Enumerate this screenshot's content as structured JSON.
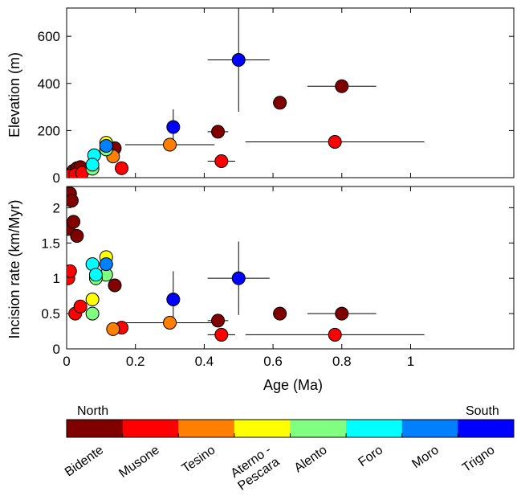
{
  "chart_data": [
    {
      "type": "scatter",
      "panel": "top",
      "xlabel": "",
      "ylabel": "Elevation (m)",
      "xlim": [
        0,
        1.3
      ],
      "ylim": [
        0,
        720
      ],
      "x_ticks": [
        "0",
        "0.2",
        "0.4",
        "0.6",
        "0.8",
        "1"
      ],
      "y_ticks": [
        "0",
        "200",
        "400",
        "600"
      ],
      "points": [
        {
          "river": "Bidente",
          "x": 0.005,
          "y": 5
        },
        {
          "river": "Bidente",
          "x": 0.012,
          "y": 15
        },
        {
          "river": "Bidente",
          "x": 0.02,
          "y": 30
        },
        {
          "river": "Bidente",
          "x": 0.03,
          "y": 40
        },
        {
          "river": "Bidente",
          "x": 0.04,
          "y": 45
        },
        {
          "river": "Bidente",
          "x": 0.14,
          "y": 125
        },
        {
          "river": "Bidente",
          "x": 0.44,
          "y": 195,
          "xerr": 0.03
        },
        {
          "river": "Bidente",
          "x": 0.62,
          "y": 318,
          "xerr": 0.02
        },
        {
          "river": "Bidente",
          "x": 0.8,
          "y": 388,
          "xerr": 0.1
        },
        {
          "river": "Musone",
          "x": 0.003,
          "y": 3
        },
        {
          "river": "Musone",
          "x": 0.01,
          "y": 8
        },
        {
          "river": "Musone",
          "x": 0.025,
          "y": 12
        },
        {
          "river": "Musone",
          "x": 0.045,
          "y": 20
        },
        {
          "river": "Musone",
          "x": 0.16,
          "y": 40
        },
        {
          "river": "Musone",
          "x": 0.45,
          "y": 70,
          "xerr": 0.04
        },
        {
          "river": "Musone",
          "x": 0.78,
          "y": 152,
          "xerr": 0.26
        },
        {
          "river": "Tesino",
          "x": 0.135,
          "y": 90
        },
        {
          "river": "Tesino",
          "x": 0.3,
          "y": 140,
          "xerr": 0.13
        },
        {
          "river": "Aterno - Pescara",
          "x": 0.115,
          "y": 148
        },
        {
          "river": "Alento",
          "x": 0.075,
          "y": 38
        },
        {
          "river": "Alento",
          "x": 0.115,
          "y": 120
        },
        {
          "river": "Foro",
          "x": 0.08,
          "y": 95
        },
        {
          "river": "Foro",
          "x": 0.075,
          "y": 55
        },
        {
          "river": "Moro",
          "x": 0.115,
          "y": 135
        },
        {
          "river": "Trigno",
          "x": 0.31,
          "y": 215,
          "yerr": 75
        },
        {
          "river": "Trigno",
          "x": 0.5,
          "y": 500,
          "xerr": 0.09,
          "yerr": 220
        }
      ]
    },
    {
      "type": "scatter",
      "panel": "bottom",
      "xlabel": "Age (Ma)",
      "ylabel": "Incision rate (km/Myr)",
      "xlim": [
        0,
        1.3
      ],
      "ylim": [
        0,
        2.3
      ],
      "x_ticks": [
        "0",
        "0.2",
        "0.4",
        "0.6",
        "0.8",
        "1"
      ],
      "y_ticks": [
        "0",
        "0.5",
        "1",
        "1.5",
        "2"
      ],
      "points": [
        {
          "river": "Bidente",
          "x": 0.01,
          "y": 2.2
        },
        {
          "river": "Bidente",
          "x": 0.015,
          "y": 2.1
        },
        {
          "river": "Bidente",
          "x": 0.005,
          "y": 1.7
        },
        {
          "river": "Bidente",
          "x": 0.02,
          "y": 1.8
        },
        {
          "river": "Bidente",
          "x": 0.03,
          "y": 1.6
        },
        {
          "river": "Bidente",
          "x": 0.14,
          "y": 0.9
        },
        {
          "river": "Bidente",
          "x": 0.44,
          "y": 0.4,
          "xerr": 0.03
        },
        {
          "river": "Bidente",
          "x": 0.62,
          "y": 0.5,
          "xerr": 0.02
        },
        {
          "river": "Bidente",
          "x": 0.8,
          "y": 0.5,
          "xerr": 0.1
        },
        {
          "river": "Musone",
          "x": 0.005,
          "y": 1.0
        },
        {
          "river": "Musone",
          "x": 0.01,
          "y": 1.1
        },
        {
          "river": "Musone",
          "x": 0.025,
          "y": 0.5
        },
        {
          "river": "Musone",
          "x": 0.04,
          "y": 0.6
        },
        {
          "river": "Musone",
          "x": 0.16,
          "y": 0.3
        },
        {
          "river": "Musone",
          "x": 0.45,
          "y": 0.2,
          "xerr": 0.04
        },
        {
          "river": "Musone",
          "x": 0.78,
          "y": 0.2,
          "xerr": 0.26
        },
        {
          "river": "Tesino",
          "x": 0.135,
          "y": 0.28
        },
        {
          "river": "Tesino",
          "x": 0.3,
          "y": 0.37,
          "xerr": 0.13
        },
        {
          "river": "Aterno - Pescara",
          "x": 0.115,
          "y": 1.3
        },
        {
          "river": "Aterno - Pescara",
          "x": 0.075,
          "y": 0.7
        },
        {
          "river": "Alento",
          "x": 0.075,
          "y": 0.5
        },
        {
          "river": "Alento",
          "x": 0.115,
          "y": 1.05
        },
        {
          "river": "Alento",
          "x": 0.085,
          "y": 1.0
        },
        {
          "river": "Foro",
          "x": 0.075,
          "y": 1.2
        },
        {
          "river": "Foro",
          "x": 0.085,
          "y": 1.05
        },
        {
          "river": "Moro",
          "x": 0.115,
          "y": 1.2
        },
        {
          "river": "Trigno",
          "x": 0.31,
          "y": 0.7,
          "yerr": 0.4
        },
        {
          "river": "Trigno",
          "x": 0.5,
          "y": 1.0,
          "xerr": 0.09,
          "yerr": 0.52
        }
      ]
    }
  ],
  "colorbar": {
    "north_label": "North",
    "south_label": "South",
    "rivers": [
      {
        "name": "Bidente",
        "color": "#800000"
      },
      {
        "name": "Musone",
        "color": "#ff0000"
      },
      {
        "name": "Tesino",
        "color": "#ff8000"
      },
      {
        "name": "Aterno - Pescara",
        "color": "#ffff00"
      },
      {
        "name": "Alento",
        "color": "#80ff80"
      },
      {
        "name": "Foro",
        "color": "#00ffff"
      },
      {
        "name": "Moro",
        "color": "#0080ff"
      },
      {
        "name": "Trigno",
        "color": "#0000ff"
      }
    ]
  }
}
